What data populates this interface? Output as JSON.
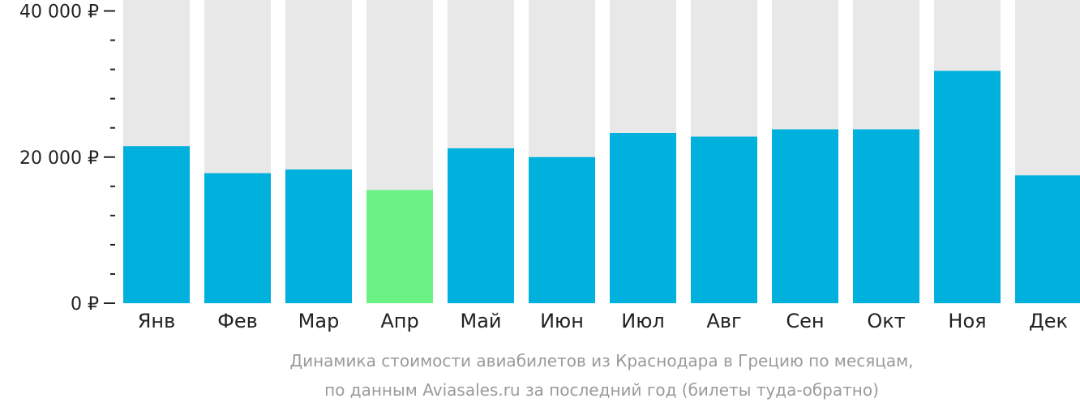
{
  "chart_data": {
    "type": "bar",
    "categories": [
      "Янв",
      "Фев",
      "Мар",
      "Апр",
      "Май",
      "Июн",
      "Июл",
      "Авг",
      "Сен",
      "Окт",
      "Ноя",
      "Дек"
    ],
    "values": [
      21500,
      17800,
      18300,
      15500,
      21200,
      20000,
      23300,
      22800,
      23800,
      23800,
      31800,
      17500
    ],
    "ylim": [
      0,
      41500
    ],
    "y_ticks": [
      {
        "value": 0,
        "label": "0 ₽"
      },
      {
        "value": 20000,
        "label": "20 000 ₽"
      },
      {
        "value": 40000,
        "label": "40 000 ₽"
      }
    ],
    "minor_tick_step": 4000,
    "highlight_index": 3,
    "colors": {
      "bar": "#00b0dd",
      "highlight": "#6bf285",
      "track": "#e8e8e8",
      "axis": "#222222"
    },
    "caption_lines": [
      "Динамика стоимости авиабилетов из Краснодара в Грецию по месяцам,",
      "по данным Aviasales.ru за последний год (билеты туда-обратно)"
    ]
  }
}
